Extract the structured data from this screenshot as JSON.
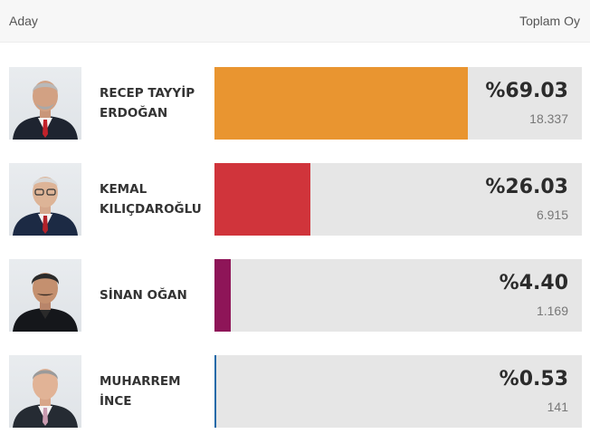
{
  "header": {
    "candidate_label": "Aday",
    "votes_label": "Toplam Oy"
  },
  "candidates": [
    {
      "line1": "RECEP TAYYİP",
      "line2": "ERDOĞAN",
      "percent_label": "%69.03",
      "share": 69.03,
      "votes": "18.337",
      "color": "#e99530",
      "portrait": "portrait-erdogan"
    },
    {
      "line1": "KEMAL",
      "line2": "KILIÇDAROĞLU",
      "percent_label": "%26.03",
      "share": 26.03,
      "votes": "6.915",
      "color": "#d0343b",
      "portrait": "portrait-kilicdaroglu"
    },
    {
      "line1": "SİNAN OĞAN",
      "line2": "",
      "percent_label": "%4.40",
      "share": 4.4,
      "votes": "1.169",
      "color": "#8e1558",
      "portrait": "portrait-ogan"
    },
    {
      "line1": "MUHARREM",
      "line2": "İNCE",
      "percent_label": "%0.53",
      "share": 0.53,
      "votes": "141",
      "color": "#1f69a8",
      "portrait": "portrait-ince"
    }
  ]
}
